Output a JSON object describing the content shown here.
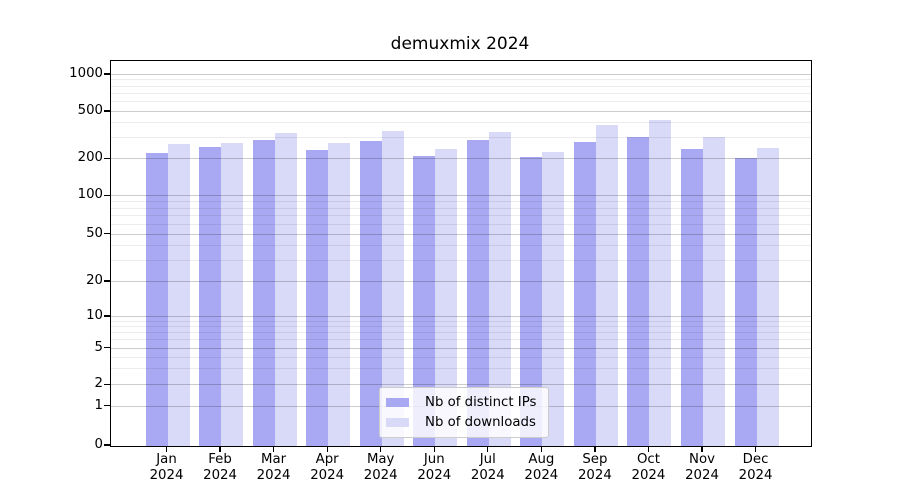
{
  "chart_data": {
    "type": "bar",
    "title": "demuxmix 2024",
    "categories": [
      "Jan",
      "Feb",
      "Mar",
      "Apr",
      "May",
      "Jun",
      "Jul",
      "Aug",
      "Sep",
      "Oct",
      "Nov",
      "Dec"
    ],
    "x_tick_year": "2024",
    "series": [
      {
        "name": "Nb of distinct IPs",
        "color": "#a9a9f3",
        "values": [
          224,
          252,
          289,
          239,
          283,
          213,
          291,
          207,
          280,
          306,
          242,
          205
        ]
      },
      {
        "name": "Nb of downloads",
        "color": "#d9d9f8",
        "values": [
          267,
          276,
          333,
          272,
          342,
          242,
          339,
          230,
          384,
          425,
          306,
          250
        ]
      }
    ],
    "y_ticks": [
      0,
      1,
      2,
      5,
      10,
      20,
      50,
      100,
      200,
      500,
      1000
    ],
    "yscale": "symlog",
    "ylim": [
      0,
      1300
    ],
    "grid": true,
    "legend_position": "lower center",
    "axis_color": "#000000"
  }
}
